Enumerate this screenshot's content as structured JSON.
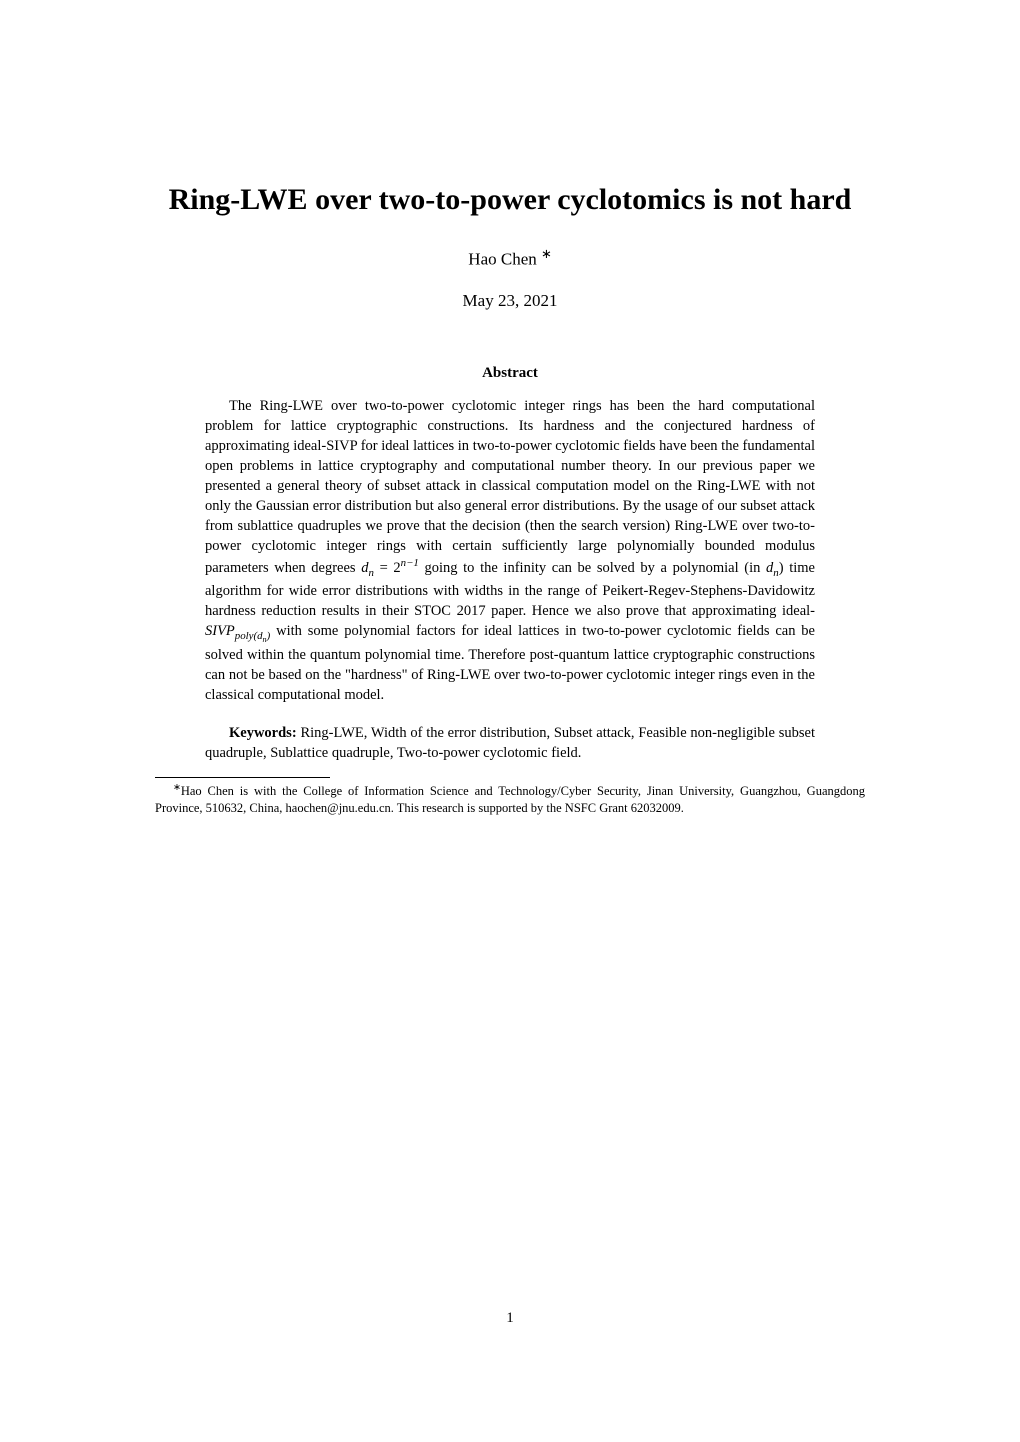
{
  "title": "Ring-LWE over two-to-power cyclotomics is not hard",
  "author": "Hao Chen ",
  "author_marker": "∗",
  "date": "May 23, 2021",
  "abstract_heading": "Abstract",
  "abstract": "The Ring-LWE over two-to-power cyclotomic integer rings has been the hard computational problem for lattice cryptographic constructions. Its hardness and the conjectured hardness of approximating ideal-SIVP for ideal lattices in two-to-power cyclotomic fields have been the fundamental open problems in lattice cryptography and computational number theory. In our previous paper we presented a general theory of subset attack in classical computation model on the Ring-LWE with not only the Gaussian error distribution but also general error distributions. By the usage of our subset attack from sublattice quadruples we prove that the decision (then the search version) Ring-LWE over two-to-power cyclotomic integer rings with certain sufficiently large polynomially bounded modulus parameters when degrees ",
  "abstract_math1_a": "d",
  "abstract_math1_sub": "n",
  "abstract_math1_eq": " = 2",
  "abstract_math1_sup": "n−1",
  "abstract_mid1": " going to the infinity can be solved by a polynomial (in ",
  "abstract_math2_a": "d",
  "abstract_math2_sub": "n",
  "abstract_mid2": ") time algorithm for wide error distributions with widths in the range of Peikert-Regev-Stephens-Davidowitz hardness reduction results in their STOC 2017 paper. Hence we also prove that approximating ideal-",
  "abstract_math3_a": "SIVP",
  "abstract_math3_sub": "poly(d",
  "abstract_math3_subsub": "n",
  "abstract_math3_sub2": ")",
  "abstract_tail": " with some polynomial factors for ideal lattices in two-to-power cyclotomic fields can be solved within the quantum polynomial time. Therefore post-quantum lattice cryptographic constructions can not be based on the \"hardness\" of Ring-LWE over two-to-power cyclotomic integer rings even in the classical computational model.",
  "keywords_label": "Keywords: ",
  "keywords": "Ring-LWE, Width of the error distribution, Subset attack, Feasible non-negligible subset quadruple, Sublattice quadruple, Two-to-power cyclotomic field.",
  "footnote_marker": "∗",
  "footnote": "Hao Chen is with the College of Information Science and Technology/Cyber Security, Jinan University, Guangzhou, Guangdong Province, 510632, China, haochen@jnu.edu.cn. This research is supported by the NSFC Grant 62032009.",
  "page_number": "1"
}
